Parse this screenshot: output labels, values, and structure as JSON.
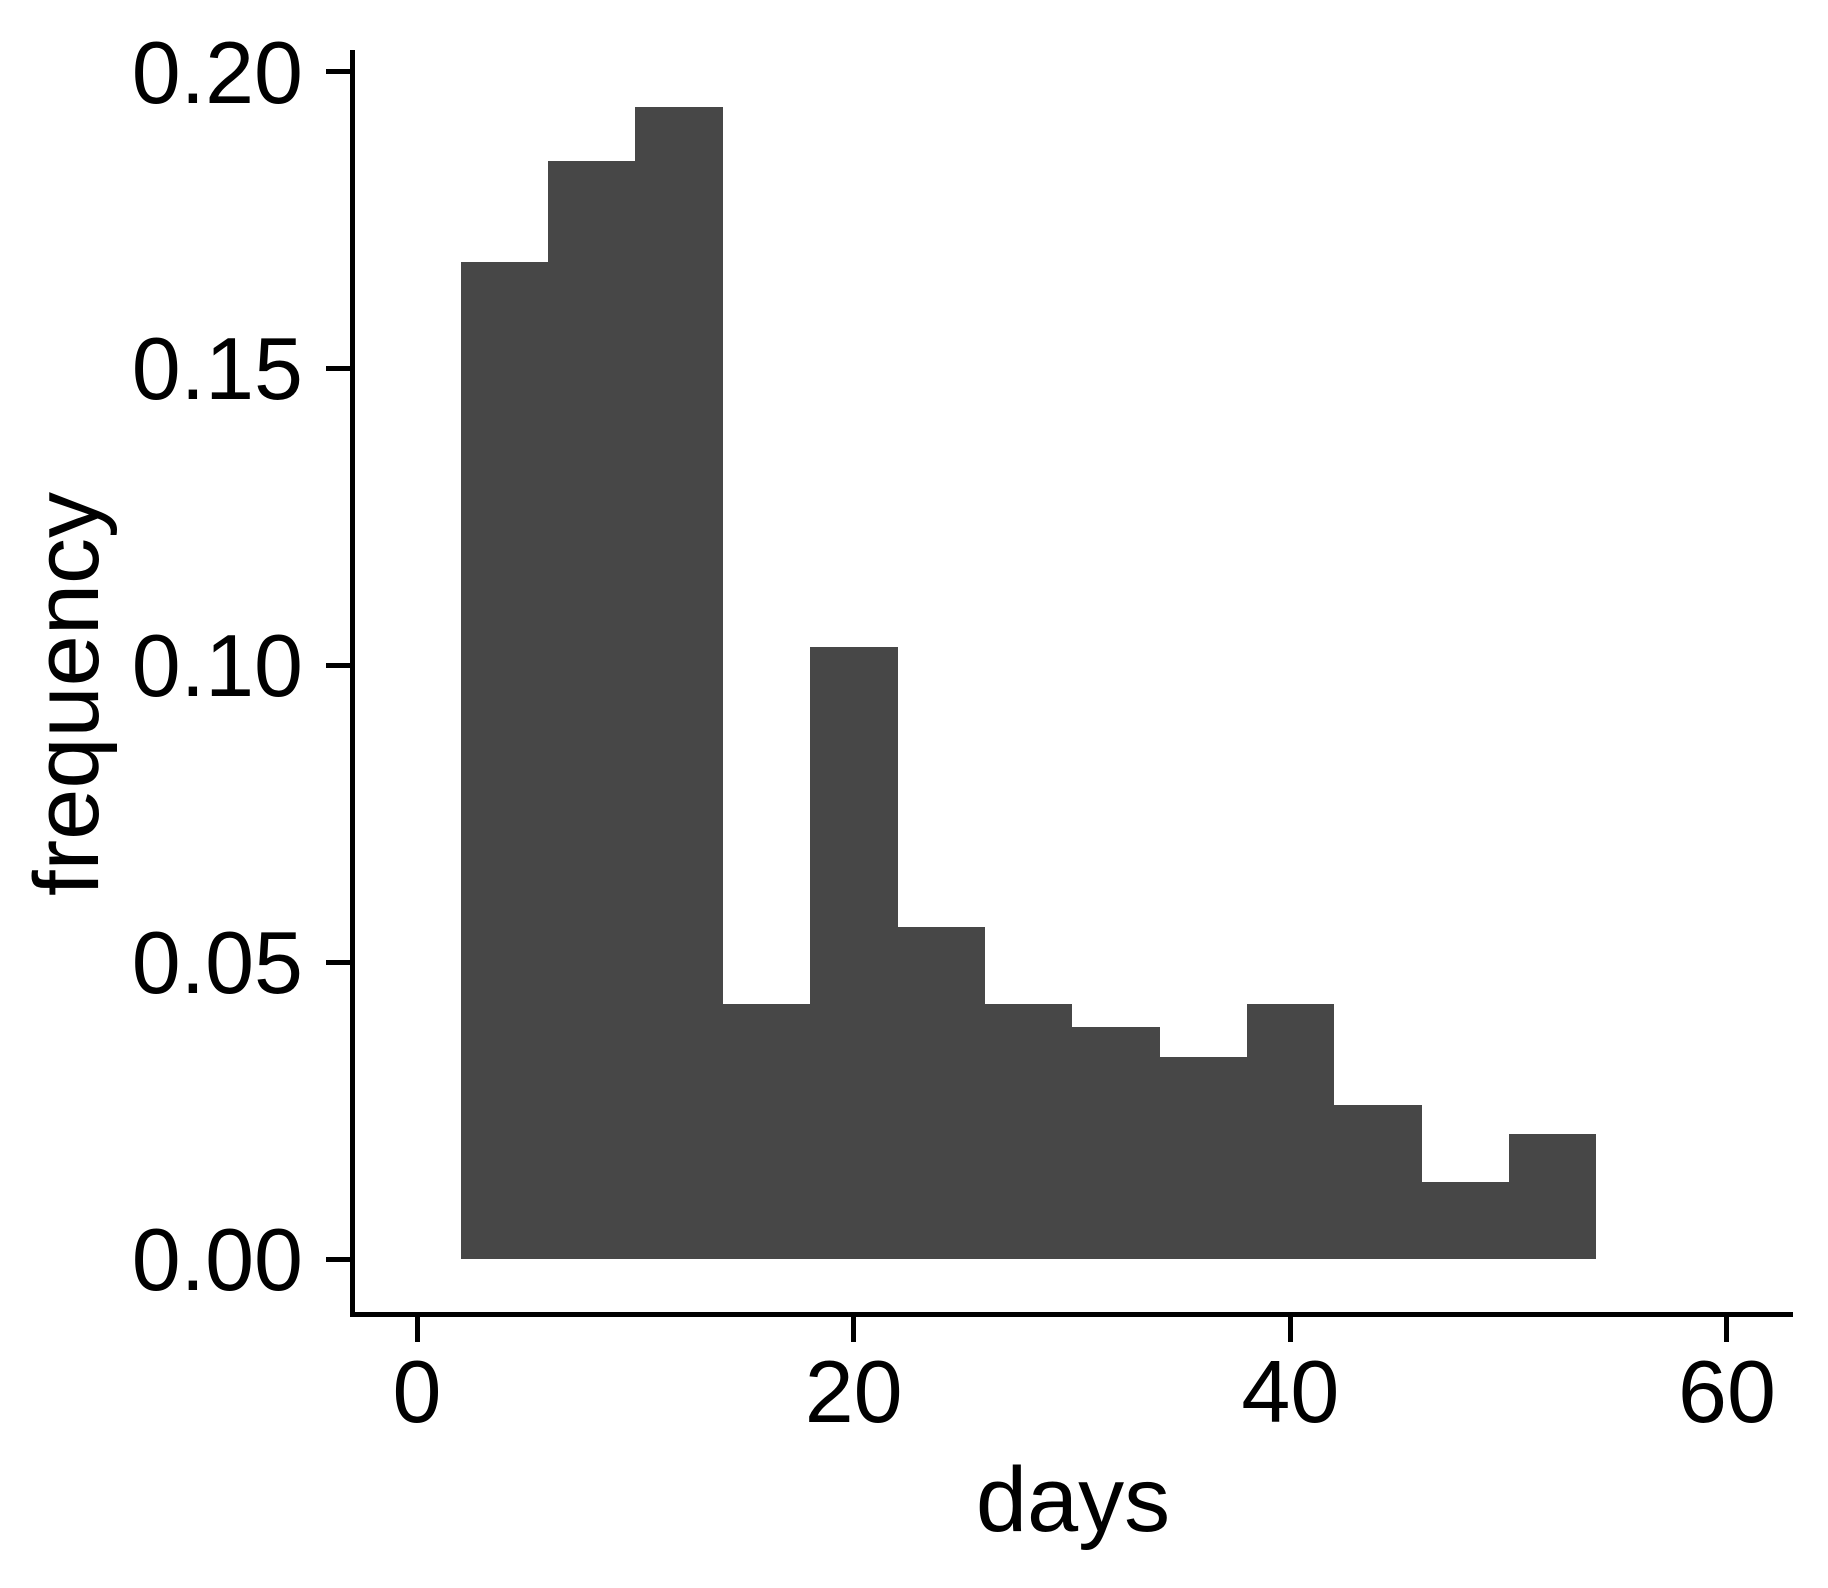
{
  "chart_data": {
    "type": "bar",
    "variant": "histogram",
    "title": "",
    "xlabel": "days",
    "ylabel": "frequency",
    "grid": false,
    "legend": "none",
    "background_color": "#ffffff",
    "bar_color": "#474747",
    "axis_color": "#000000",
    "text_color": "#000000",
    "bin_width": 4,
    "bin_edges": [
      2,
      6,
      10,
      14,
      18,
      22,
      26,
      30,
      34,
      38,
      42,
      46,
      50,
      54
    ],
    "bin_centers": [
      4,
      8,
      12,
      16,
      20,
      24,
      28,
      32,
      36,
      40,
      44,
      48,
      52
    ],
    "values": [
      0.168,
      0.185,
      0.194,
      0.043,
      0.103,
      0.056,
      0.043,
      0.039,
      0.034,
      0.043,
      0.026,
      0.013,
      0.021
    ],
    "x_ticks": [
      {
        "value": 0,
        "label": "0"
      },
      {
        "value": 20,
        "label": "20"
      },
      {
        "value": 40,
        "label": "40"
      },
      {
        "value": 60,
        "label": "60"
      }
    ],
    "y_ticks": [
      {
        "value": 0.0,
        "label": "0.00"
      },
      {
        "value": 0.05,
        "label": "0.05"
      },
      {
        "value": 0.1,
        "label": "0.10"
      },
      {
        "value": 0.15,
        "label": "0.15"
      },
      {
        "value": 0.2,
        "label": "0.20"
      }
    ],
    "xlim": [
      -2.9,
      63.0
    ],
    "ylim": [
      -0.0094,
      0.2035
    ]
  }
}
